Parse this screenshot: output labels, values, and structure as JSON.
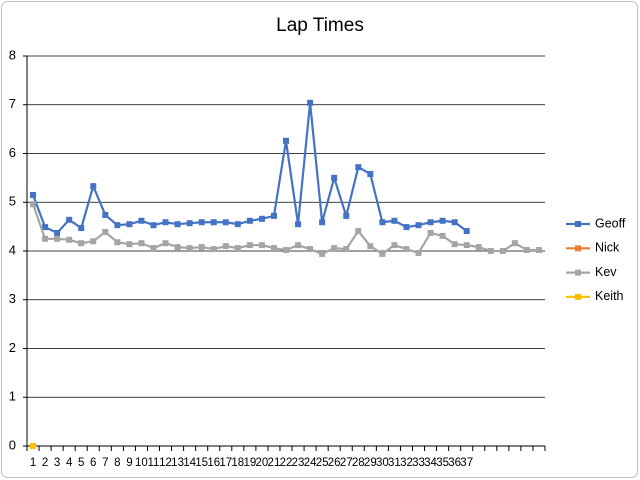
{
  "chart_data": {
    "type": "line",
    "title": "Lap Times",
    "categories": [
      "1",
      "2",
      "3",
      "4",
      "5",
      "6",
      "7",
      "8",
      "9",
      "10",
      "11",
      "12",
      "13",
      "14",
      "15",
      "16",
      "17",
      "18",
      "19",
      "20",
      "21",
      "22",
      "23",
      "24",
      "25",
      "26",
      "27",
      "28",
      "29",
      "30",
      "31",
      "32",
      "33",
      "34",
      "35",
      "36",
      "37",
      null,
      null,
      null,
      null,
      null,
      null
    ],
    "series": [
      {
        "name": "Geoff",
        "color": "#4472c4",
        "values": [
          5.15,
          4.49,
          4.37,
          4.64,
          4.47,
          5.33,
          4.74,
          4.53,
          4.55,
          4.62,
          4.53,
          4.59,
          4.55,
          4.57,
          4.59,
          4.59,
          4.59,
          4.55,
          4.62,
          4.66,
          4.72,
          6.26,
          4.55,
          7.04,
          4.59,
          5.5,
          4.72,
          5.72,
          5.58,
          4.59,
          4.62,
          4.49,
          4.53,
          4.59,
          4.62,
          4.59,
          4.41,
          null,
          null,
          null,
          null,
          null,
          null
        ]
      },
      {
        "name": "Nick",
        "color": "#ed7d31",
        "values": [
          0,
          null,
          null,
          null,
          null,
          null,
          null,
          null,
          null,
          null,
          null,
          null,
          null,
          null,
          null,
          null,
          null,
          null,
          null,
          null,
          null,
          null,
          null,
          null,
          null,
          null,
          null,
          null,
          null,
          null,
          null,
          null,
          null,
          null,
          null,
          null,
          null,
          null,
          null,
          null,
          null,
          null,
          null
        ]
      },
      {
        "name": "Kev",
        "color": "#a5a5a5",
        "values": [
          4.96,
          4.25,
          4.25,
          4.23,
          4.16,
          4.2,
          4.39,
          4.18,
          4.14,
          4.16,
          4.06,
          4.16,
          4.08,
          4.06,
          4.08,
          4.04,
          4.1,
          4.06,
          4.12,
          4.12,
          4.06,
          4.02,
          4.12,
          4.04,
          3.94,
          4.06,
          4.04,
          4.41,
          4.1,
          3.94,
          4.12,
          4.04,
          3.96,
          4.37,
          4.31,
          4.14,
          4.12,
          4.08,
          4.0,
          4.0,
          4.16,
          4.02,
          4.02
        ]
      },
      {
        "name": "Keith",
        "color": "#ffc000",
        "values": [
          0,
          null,
          null,
          null,
          null,
          null,
          null,
          null,
          null,
          null,
          null,
          null,
          null,
          null,
          null,
          null,
          null,
          null,
          null,
          null,
          null,
          null,
          null,
          null,
          null,
          null,
          null,
          null,
          null,
          null,
          null,
          null,
          null,
          null,
          null,
          null,
          null,
          null,
          null,
          null,
          null,
          null,
          null
        ]
      }
    ],
    "ylim": [
      0,
      8
    ],
    "yticks": [
      0,
      1,
      2,
      3,
      4,
      5,
      6,
      7,
      8
    ],
    "grid": true,
    "legend": "right"
  }
}
